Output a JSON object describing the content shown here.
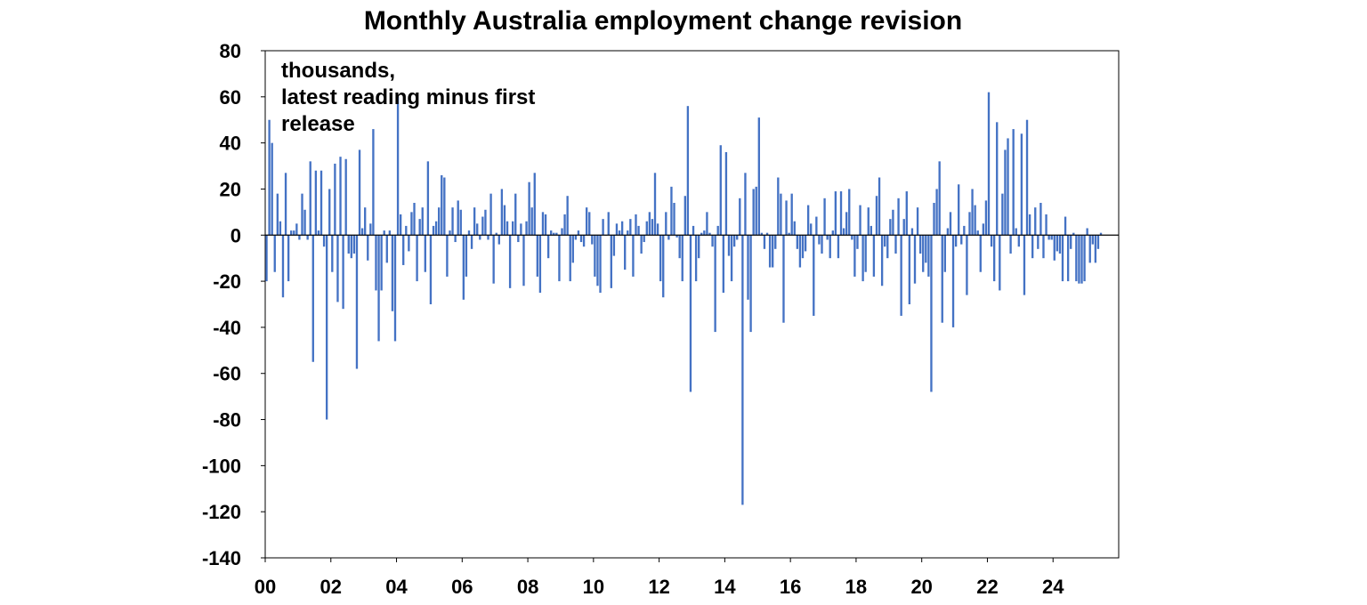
{
  "chart_data": {
    "type": "bar",
    "title": "Monthly Australia employment change revision",
    "annotation": [
      "thousands,",
      "latest reading minus first",
      "release"
    ],
    "xlabel": "",
    "ylabel": "",
    "ylim": [
      -140,
      80
    ],
    "y_ticks": [
      80,
      60,
      40,
      20,
      0,
      -20,
      -40,
      -60,
      -80,
      -100,
      -120,
      -140
    ],
    "x_tick_labels": [
      "00",
      "02",
      "04",
      "06",
      "08",
      "10",
      "12",
      "14",
      "16",
      "18",
      "20",
      "22",
      "24"
    ],
    "x_start_year": 2000,
    "frequency": "monthly",
    "series_color": "#4472C4",
    "grid": false,
    "legend": "none",
    "values": [
      -20,
      50,
      40,
      -16,
      18,
      6,
      -27,
      27,
      -20,
      2,
      2,
      5,
      -2,
      18,
      11,
      -2,
      32,
      -55,
      28,
      2,
      28,
      -5,
      -80,
      20,
      -16,
      31,
      -29,
      34,
      -32,
      33,
      -8,
      -10,
      -8,
      -58,
      37,
      3,
      12,
      -11,
      5,
      46,
      -24,
      -46,
      -24,
      2,
      -12,
      2,
      -33,
      -46,
      60,
      9,
      -13,
      4,
      -7,
      10,
      14,
      -20,
      7,
      12,
      -16,
      32,
      -30,
      4,
      6,
      12,
      26,
      25,
      -18,
      2,
      12,
      -3,
      15,
      11,
      -28,
      -18,
      2,
      -6,
      12,
      5,
      -2,
      8,
      11,
      -2,
      18,
      -21,
      1,
      -4,
      20,
      13,
      6,
      -23,
      6,
      18,
      -3,
      5,
      -22,
      6,
      23,
      12,
      27,
      -18,
      -25,
      10,
      9,
      -10,
      2,
      1,
      1,
      -20,
      3,
      9,
      17,
      -20,
      -12,
      -2,
      2,
      -3,
      -5,
      12,
      10,
      -4,
      -18,
      -22,
      -25,
      7,
      0,
      10,
      -23,
      -9,
      5,
      2,
      6,
      -15,
      2,
      7,
      -18,
      9,
      4,
      -8,
      -3,
      6,
      10,
      7,
      27,
      5,
      -20,
      -27,
      10,
      -2,
      21,
      14,
      -1,
      -10,
      -20,
      17,
      56,
      -68,
      4,
      -20,
      -10,
      1,
      2,
      10,
      1,
      -5,
      -42,
      4,
      39,
      -25,
      36,
      -9,
      -20,
      -5,
      -2,
      16,
      -117,
      27,
      -28,
      -42,
      20,
      21,
      51,
      1,
      -6,
      1,
      -14,
      -14,
      -6,
      25,
      18,
      -38,
      15,
      1,
      18,
      6,
      -6,
      -14,
      -10,
      -7,
      13,
      5,
      -35,
      8,
      -4,
      -8,
      16,
      -2,
      -10,
      2,
      19,
      -10,
      19,
      3,
      10,
      20,
      -2,
      -18,
      -6,
      13,
      -20,
      -16,
      12,
      4,
      -18,
      17,
      25,
      -22,
      -5,
      -10,
      7,
      11,
      -8,
      16,
      -35,
      7,
      19,
      -30,
      3,
      -21,
      12,
      -8,
      -16,
      -12,
      -18,
      -68,
      14,
      20,
      32,
      -38,
      -16,
      3,
      10,
      -40,
      -5,
      22,
      -4,
      4,
      -26,
      10,
      20,
      13,
      2,
      -16,
      5,
      15,
      62,
      -5,
      -20,
      49,
      -24,
      18,
      37,
      42,
      -8,
      46,
      3,
      -5,
      44,
      -26,
      50,
      9,
      -10,
      12,
      -6,
      14,
      -10,
      9,
      -2,
      -2,
      -11,
      -7,
      -8,
      -20,
      8,
      -20,
      -6,
      1,
      -20,
      -21,
      -21,
      -20,
      3,
      -12,
      -4,
      -12,
      -6,
      1
    ]
  }
}
